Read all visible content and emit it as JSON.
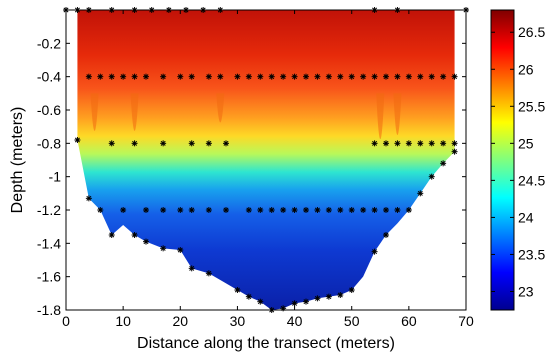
{
  "chart_data": {
    "type": "heatmap",
    "title": "",
    "xlabel": "Distance along the transect (meters)",
    "ylabel": "Depth (meters)",
    "xlim": [
      0,
      70
    ],
    "ylim": [
      -1.8,
      0
    ],
    "x_ticks": [
      "0",
      "10",
      "20",
      "30",
      "40",
      "50",
      "60",
      "70"
    ],
    "y_ticks": [
      "-0.2",
      "-0.4",
      "-0.6",
      "-0.8",
      "-1",
      "-1.2",
      "-1.4",
      "-1.6",
      "-1.8"
    ],
    "colorbar": {
      "range": [
        22.75,
        26.8
      ],
      "ticks": [
        "23",
        "23.5",
        "24",
        "24.5",
        "25",
        "25.5",
        "26",
        "26.5"
      ],
      "colormap": "jet"
    },
    "bottom_boundary": [
      [
        2,
        -0.78
      ],
      [
        4,
        -1.13
      ],
      [
        6,
        -1.2
      ],
      [
        8,
        -1.35
      ],
      [
        10,
        -1.29
      ],
      [
        12,
        -1.35
      ],
      [
        14,
        -1.39
      ],
      [
        17,
        -1.43
      ],
      [
        20,
        -1.44
      ],
      [
        22,
        -1.55
      ],
      [
        25,
        -1.58
      ],
      [
        27,
        -1.62
      ],
      [
        30,
        -1.68
      ],
      [
        32,
        -1.72
      ],
      [
        34,
        -1.75
      ],
      [
        36,
        -1.8
      ],
      [
        38,
        -1.79
      ],
      [
        40,
        -1.76
      ],
      [
        42,
        -1.75
      ],
      [
        44,
        -1.73
      ],
      [
        46,
        -1.72
      ],
      [
        48,
        -1.71
      ],
      [
        50,
        -1.68
      ],
      [
        52,
        -1.6
      ],
      [
        54,
        -1.45
      ],
      [
        56,
        -1.35
      ],
      [
        58,
        -1.28
      ],
      [
        60,
        -1.2
      ],
      [
        62,
        -1.1
      ],
      [
        64,
        -1.0
      ],
      [
        66,
        -0.92
      ],
      [
        68,
        -0.85
      ]
    ],
    "sample_points": [
      [
        0,
        0
      ],
      [
        2,
        0
      ],
      [
        4,
        0
      ],
      [
        8,
        0
      ],
      [
        12,
        0
      ],
      [
        15,
        0
      ],
      [
        18,
        0
      ],
      [
        21,
        0
      ],
      [
        24,
        0
      ],
      [
        27,
        0
      ],
      [
        54,
        0
      ],
      [
        58,
        0
      ],
      [
        70,
        0
      ],
      [
        4,
        -0.4
      ],
      [
        6,
        -0.4
      ],
      [
        8,
        -0.4
      ],
      [
        10,
        -0.4
      ],
      [
        12,
        -0.4
      ],
      [
        14,
        -0.4
      ],
      [
        17,
        -0.4
      ],
      [
        20,
        -0.4
      ],
      [
        22,
        -0.4
      ],
      [
        25,
        -0.4
      ],
      [
        27,
        -0.4
      ],
      [
        30,
        -0.4
      ],
      [
        32,
        -0.4
      ],
      [
        34,
        -0.4
      ],
      [
        36,
        -0.4
      ],
      [
        38,
        -0.4
      ],
      [
        40,
        -0.4
      ],
      [
        42,
        -0.4
      ],
      [
        44,
        -0.4
      ],
      [
        46,
        -0.4
      ],
      [
        48,
        -0.4
      ],
      [
        50,
        -0.4
      ],
      [
        52,
        -0.4
      ],
      [
        54,
        -0.4
      ],
      [
        56,
        -0.4
      ],
      [
        58,
        -0.4
      ],
      [
        60,
        -0.4
      ],
      [
        62,
        -0.4
      ],
      [
        64,
        -0.4
      ],
      [
        66,
        -0.4
      ],
      [
        68,
        -0.4
      ],
      [
        2,
        -0.78
      ],
      [
        8,
        -0.8
      ],
      [
        12,
        -0.8
      ],
      [
        17,
        -0.8
      ],
      [
        22,
        -0.8
      ],
      [
        25,
        -0.8
      ],
      [
        28,
        -0.8
      ],
      [
        54,
        -0.8
      ],
      [
        56,
        -0.8
      ],
      [
        58,
        -0.8
      ],
      [
        60,
        -0.8
      ],
      [
        62,
        -0.8
      ],
      [
        64,
        -0.8
      ],
      [
        66,
        -0.8
      ],
      [
        68,
        -0.8
      ],
      [
        4,
        -1.13
      ],
      [
        6,
        -1.2
      ],
      [
        10,
        -1.2
      ],
      [
        14,
        -1.2
      ],
      [
        17,
        -1.2
      ],
      [
        20,
        -1.2
      ],
      [
        22,
        -1.2
      ],
      [
        25,
        -1.2
      ],
      [
        28,
        -1.2
      ],
      [
        32,
        -1.2
      ],
      [
        34,
        -1.2
      ],
      [
        36,
        -1.2
      ],
      [
        38,
        -1.2
      ],
      [
        40,
        -1.2
      ],
      [
        42,
        -1.2
      ],
      [
        44,
        -1.2
      ],
      [
        46,
        -1.2
      ],
      [
        48,
        -1.2
      ],
      [
        50,
        -1.2
      ],
      [
        52,
        -1.2
      ],
      [
        54,
        -1.2
      ],
      [
        56,
        -1.2
      ],
      [
        58,
        -1.2
      ],
      [
        60,
        -1.2
      ],
      [
        8,
        -1.35
      ],
      [
        12,
        -1.35
      ],
      [
        14,
        -1.39
      ],
      [
        17,
        -1.43
      ],
      [
        20,
        -1.44
      ],
      [
        22,
        -1.55
      ],
      [
        25,
        -1.58
      ],
      [
        30,
        -1.68
      ],
      [
        32,
        -1.72
      ],
      [
        34,
        -1.75
      ],
      [
        36,
        -1.8
      ],
      [
        38,
        -1.79
      ],
      [
        40,
        -1.76
      ],
      [
        42,
        -1.75
      ],
      [
        44,
        -1.73
      ],
      [
        46,
        -1.72
      ],
      [
        48,
        -1.71
      ],
      [
        50,
        -1.68
      ],
      [
        54,
        -1.45
      ],
      [
        56,
        -1.35
      ],
      [
        62,
        -1.1
      ],
      [
        64,
        -1.0
      ],
      [
        66,
        -0.92
      ],
      [
        68,
        -0.85
      ]
    ]
  }
}
